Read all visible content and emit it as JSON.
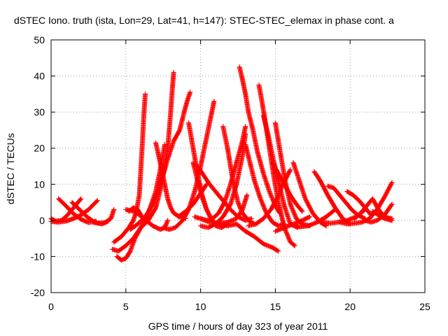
{
  "chart_data": {
    "type": "scatter",
    "title": "dSTEC Iono. truth (ista, Lon=29, Lat=41, h=147): STEC-STEC_elemax in phase cont. a",
    "xlabel": "GPS time / hours of day 323 of year 2011",
    "ylabel": "dSTEC  / TECUs",
    "xlim": [
      0,
      25
    ],
    "ylim": [
      -20,
      50
    ],
    "xticks": [
      0,
      5,
      10,
      15,
      20,
      25
    ],
    "yticks": [
      -20,
      -10,
      0,
      10,
      20,
      30,
      40,
      50
    ],
    "grid": true,
    "marker": "+",
    "series_color": "#ff0000",
    "series": [
      {
        "x": [
          0.0,
          0.3,
          0.7,
          1.1,
          1.5,
          2.0
        ],
        "y": [
          0.5,
          -0.2,
          0.0,
          1.5,
          3.5,
          6.0
        ]
      },
      {
        "x": [
          0.5,
          1.0,
          1.5,
          2.0,
          2.5,
          3.0
        ],
        "y": [
          6.0,
          4.0,
          1.8,
          0.3,
          -0.6,
          -0.2
        ]
      },
      {
        "x": [
          0.0,
          0.5,
          1.0,
          1.5,
          2.0,
          2.5,
          3.1
        ],
        "y": [
          -0.3,
          -0.5,
          -0.2,
          0.5,
          1.5,
          3.0,
          5.5
        ]
      },
      {
        "x": [
          1.4,
          1.9,
          2.4,
          2.9,
          3.4,
          3.8
        ],
        "y": [
          5.0,
          3.0,
          1.0,
          -0.5,
          -1.0,
          -0.3
        ]
      },
      {
        "x": [
          2.8,
          3.2,
          3.6,
          4.0,
          4.2
        ],
        "y": [
          -0.5,
          -0.8,
          -0.6,
          0.5,
          3.0
        ]
      },
      {
        "x": [
          4.2,
          4.7,
          5.2,
          5.5,
          5.7,
          5.9,
          6.0,
          6.1,
          6.2,
          6.3
        ],
        "y": [
          -6.0,
          -4.5,
          -2.0,
          0.0,
          2.5,
          7.0,
          14.0,
          21.0,
          29.0,
          35.0
        ]
      },
      {
        "x": [
          4.4,
          4.7,
          5.0,
          5.3,
          5.6,
          6.0,
          6.5,
          7.0,
          7.4,
          7.8,
          8.0,
          8.1,
          8.2
        ],
        "y": [
          -10.0,
          -11.0,
          -10.5,
          -8.5,
          -5.0,
          -2.0,
          0.0,
          3.5,
          10.0,
          20.0,
          30.0,
          36.0,
          41.0
        ]
      },
      {
        "x": [
          4.1,
          4.5,
          5.0,
          5.5,
          6.0,
          6.5,
          7.0,
          7.3,
          7.6
        ],
        "y": [
          -8.0,
          -8.5,
          -7.0,
          -5.0,
          -2.0,
          2.0,
          8.0,
          14.0,
          21.0
        ]
      },
      {
        "x": [
          5.3,
          5.8,
          6.3,
          6.8,
          7.3,
          7.8,
          8.2,
          8.6,
          8.9,
          9.1,
          9.3
        ],
        "y": [
          -2.5,
          -1.0,
          1.0,
          4.5,
          10.0,
          17.0,
          22.0,
          25.0,
          30.0,
          33.0,
          35.5
        ]
      },
      {
        "x": [
          5.2,
          5.5,
          5.8,
          6.0,
          6.3
        ],
        "y": [
          2.5,
          3.5,
          3.0,
          1.5,
          -0.5
        ]
      },
      {
        "x": [
          5.0,
          5.6,
          6.2,
          6.8,
          7.3,
          7.6,
          7.8
        ],
        "y": [
          3.0,
          2.5,
          0.5,
          -1.5,
          -2.5,
          -2.0,
          0.0
        ]
      },
      {
        "x": [
          7.0,
          7.3,
          7.6,
          7.8,
          8.0,
          8.2,
          8.6,
          9.0
        ],
        "y": [
          21.5,
          16.0,
          10.0,
          6.0,
          3.5,
          2.0,
          1.0,
          0.5
        ]
      },
      {
        "x": [
          7.5,
          7.9,
          8.3,
          8.8,
          9.2,
          9.6,
          10.0,
          10.4,
          10.7,
          10.9
        ],
        "y": [
          -2.0,
          -2.5,
          -2.0,
          0.0,
          3.0,
          8.0,
          15.0,
          23.0,
          29.0,
          33.0
        ]
      },
      {
        "x": [
          8.5,
          9.0,
          9.5,
          10.0,
          10.4
        ],
        "y": [
          1.0,
          2.5,
          4.5,
          7.5,
          10.0
        ]
      },
      {
        "x": [
          9.2,
          9.5,
          9.8,
          10.1,
          10.4,
          10.7,
          11.0,
          11.5
        ],
        "y": [
          27.0,
          20.0,
          13.0,
          7.0,
          3.0,
          0.5,
          -1.0,
          -1.5
        ]
      },
      {
        "x": [
          9.5,
          9.8,
          10.1,
          10.4,
          10.7,
          11.0,
          11.4,
          11.8
        ],
        "y": [
          16.0,
          11.0,
          6.5,
          3.0,
          0.5,
          -1.5,
          -2.0,
          -1.0
        ]
      },
      {
        "x": [
          9.8,
          10.2,
          10.6,
          11.0,
          11.5,
          12.0,
          12.5,
          13.0,
          13.4
        ],
        "y": [
          15.0,
          12.5,
          10.0,
          8.0,
          5.5,
          3.0,
          1.0,
          0.0,
          0.5
        ]
      },
      {
        "x": [
          9.6,
          10.0,
          10.4,
          10.8,
          11.2,
          11.6,
          12.0,
          12.4,
          12.8,
          13.0
        ],
        "y": [
          1.0,
          0.5,
          0.0,
          0.5,
          2.0,
          5.0,
          10.0,
          16.0,
          22.0,
          26.0
        ]
      },
      {
        "x": [
          10.0,
          10.5,
          11.0,
          11.5,
          12.0,
          12.4,
          12.8,
          13.0
        ],
        "y": [
          -1.5,
          -2.0,
          -1.0,
          1.0,
          4.5,
          10.0,
          18.0,
          24.0
        ]
      },
      {
        "x": [
          10.0,
          10.6,
          11.2,
          11.8,
          12.4,
          12.8,
          13.1
        ],
        "y": [
          0.5,
          -0.5,
          -0.8,
          -0.5,
          0.5,
          3.0,
          7.0
        ]
      },
      {
        "x": [
          11.5,
          11.8,
          12.0,
          12.2,
          12.5,
          12.8,
          13.2,
          13.6
        ],
        "y": [
          26.0,
          20.0,
          15.0,
          10.0,
          5.0,
          2.0,
          0.0,
          -1.0
        ]
      },
      {
        "x": [
          11.2,
          11.8,
          12.4,
          13.0,
          13.6,
          14.2,
          14.8,
          15.2
        ],
        "y": [
          -1.0,
          -1.5,
          -1.0,
          -3.0,
          -4.5,
          -6.5,
          -7.5,
          -8.5
        ]
      },
      {
        "x": [
          12.6,
          12.8,
          13.0,
          13.2,
          13.5,
          13.8,
          14.2,
          14.6,
          15.0,
          15.3
        ],
        "y": [
          42.5,
          39.0,
          35.0,
          30.0,
          25.0,
          19.0,
          13.0,
          8.0,
          4.0,
          2.0
        ]
      },
      {
        "x": [
          13.0,
          13.3,
          13.6,
          14.0,
          14.4,
          14.8,
          15.2,
          15.6
        ],
        "y": [
          21.0,
          16.0,
          11.0,
          6.0,
          2.0,
          -0.5,
          -1.5,
          -1.0
        ]
      },
      {
        "x": [
          13.9,
          14.1,
          14.3,
          14.6,
          14.9,
          15.2,
          15.6,
          16.0,
          16.3
        ],
        "y": [
          37.5,
          33.0,
          28.0,
          20.0,
          12.0,
          5.0,
          -2.0,
          -6.0,
          -7.0
        ]
      },
      {
        "x": [
          13.2,
          13.7,
          14.2,
          14.7,
          15.1,
          15.5,
          16.0
        ],
        "y": [
          -1.5,
          -1.0,
          0.5,
          3.0,
          6.0,
          10.0,
          14.0
        ]
      },
      {
        "x": [
          14.2,
          14.5,
          14.8,
          15.2,
          15.6,
          16.0,
          16.5
        ],
        "y": [
          29.0,
          24.0,
          18.0,
          11.0,
          4.0,
          -1.0,
          -2.0
        ]
      },
      {
        "x": [
          14.8,
          15.2,
          15.6,
          16.0,
          16.4,
          16.8
        ],
        "y": [
          16.0,
          13.0,
          10.0,
          7.0,
          4.5,
          2.5
        ]
      },
      {
        "x": [
          15.0,
          15.2,
          15.4,
          15.7,
          16.0,
          16.4,
          16.8,
          17.3
        ],
        "y": [
          27.0,
          22.0,
          17.0,
          10.0,
          4.5,
          0.5,
          -1.0,
          -1.5
        ]
      },
      {
        "x": [
          15.0,
          15.6,
          16.2,
          16.8,
          17.3
        ],
        "y": [
          -3.0,
          -2.0,
          -1.0,
          0.0,
          1.0
        ]
      },
      {
        "x": [
          16.2,
          16.6,
          17.0,
          17.5,
          18.0,
          18.4
        ],
        "y": [
          16.0,
          11.0,
          6.0,
          2.0,
          -0.5,
          -1.5
        ]
      },
      {
        "x": [
          16.0,
          16.6,
          17.2,
          17.8,
          18.4,
          19.0
        ],
        "y": [
          -1.0,
          -1.8,
          -1.5,
          -0.5,
          1.0,
          3.0
        ]
      },
      {
        "x": [
          17.6,
          18.0,
          18.5,
          19.0,
          19.5,
          20.0
        ],
        "y": [
          13.5,
          11.0,
          7.0,
          3.5,
          0.5,
          -1.0
        ]
      },
      {
        "x": [
          18.2,
          18.7,
          19.2,
          19.8,
          20.4,
          21.0
        ],
        "y": [
          -0.5,
          -0.8,
          -0.5,
          0.0,
          1.0,
          3.0
        ]
      },
      {
        "x": [
          18.5,
          18.9,
          19.3,
          19.7,
          20.1,
          20.5,
          21.0
        ],
        "y": [
          9.5,
          9.0,
          7.0,
          5.0,
          3.0,
          1.5,
          0.5
        ]
      },
      {
        "x": [
          19.3,
          19.8,
          20.3,
          20.8,
          21.3,
          21.8,
          22.3,
          22.8
        ],
        "y": [
          -0.5,
          -1.0,
          -0.8,
          -0.5,
          0.5,
          3.0,
          6.5,
          10.5
        ]
      },
      {
        "x": [
          19.8,
          20.2,
          20.6,
          21.0,
          21.4
        ],
        "y": [
          8.0,
          7.0,
          5.5,
          3.5,
          1.5
        ]
      },
      {
        "x": [
          20.3,
          20.7,
          21.1,
          21.5,
          21.9,
          22.3,
          22.8
        ],
        "y": [
          0.5,
          2.0,
          4.0,
          6.0,
          3.0,
          1.0,
          0.0
        ]
      },
      {
        "x": [
          21.0,
          21.4,
          21.8,
          22.3,
          22.8
        ],
        "y": [
          0.0,
          -0.5,
          0.0,
          1.5,
          4.5
        ]
      },
      {
        "x": [
          21.5,
          21.9,
          22.3,
          22.8
        ],
        "y": [
          2.5,
          1.5,
          0.5,
          0.0
        ]
      },
      {
        "x": [
          22.0,
          22.4,
          22.8
        ],
        "y": [
          1.5,
          0.8,
          0.5
        ]
      }
    ]
  }
}
